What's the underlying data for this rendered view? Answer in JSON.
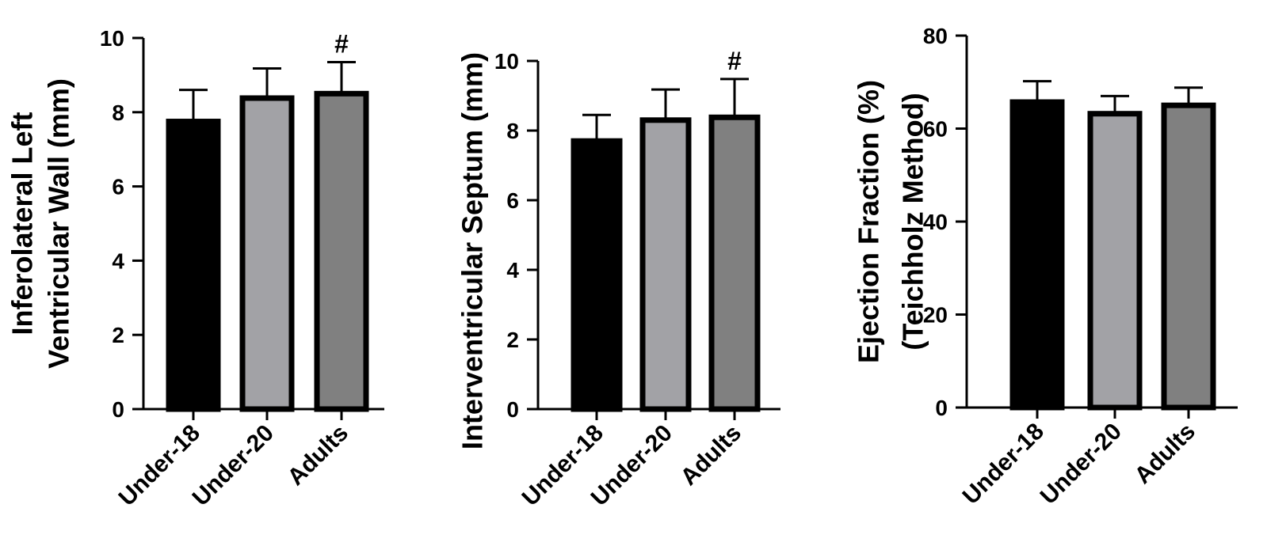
{
  "chart_data": [
    {
      "type": "bar",
      "categories": [
        "Under-18",
        "Under-20",
        "Adults"
      ],
      "values": [
        7.75,
        8.38,
        8.5
      ],
      "errors": [
        0.85,
        0.8,
        0.85
      ],
      "colors": [
        "#000000",
        "#a2a2a6",
        "#808080"
      ],
      "annotations": [
        "",
        "",
        "#"
      ],
      "ylabel_lines": [
        "Inferolateral Left",
        "Ventricular Wall (mm)"
      ],
      "ylim": [
        0,
        10
      ],
      "yticks": [
        0,
        2,
        4,
        6,
        8,
        10
      ]
    },
    {
      "type": "bar",
      "categories": [
        "Under-18",
        "Under-20",
        "Adults"
      ],
      "values": [
        7.7,
        8.3,
        8.38
      ],
      "errors": [
        0.75,
        0.88,
        1.1
      ],
      "colors": [
        "#000000",
        "#a2a2a6",
        "#808080"
      ],
      "annotations": [
        "",
        "",
        "#"
      ],
      "ylabel_lines": [
        "Interventricular Septum (mm)"
      ],
      "ylim": [
        0,
        10
      ],
      "yticks": [
        0,
        2,
        4,
        6,
        8,
        10
      ]
    },
    {
      "type": "bar",
      "categories": [
        "Under-18",
        "Under-20",
        "Adults"
      ],
      "values": [
        65.7,
        63.2,
        65.0
      ],
      "errors": [
        4.5,
        3.8,
        3.8
      ],
      "colors": [
        "#000000",
        "#a2a2a6",
        "#808080"
      ],
      "annotations": [
        "",
        "",
        ""
      ],
      "ylabel_lines": [
        "Ejection Fraction (%)",
        "(Teichholz Method)"
      ],
      "ylim": [
        0,
        80
      ],
      "yticks": [
        0,
        20,
        40,
        60,
        80
      ]
    }
  ]
}
